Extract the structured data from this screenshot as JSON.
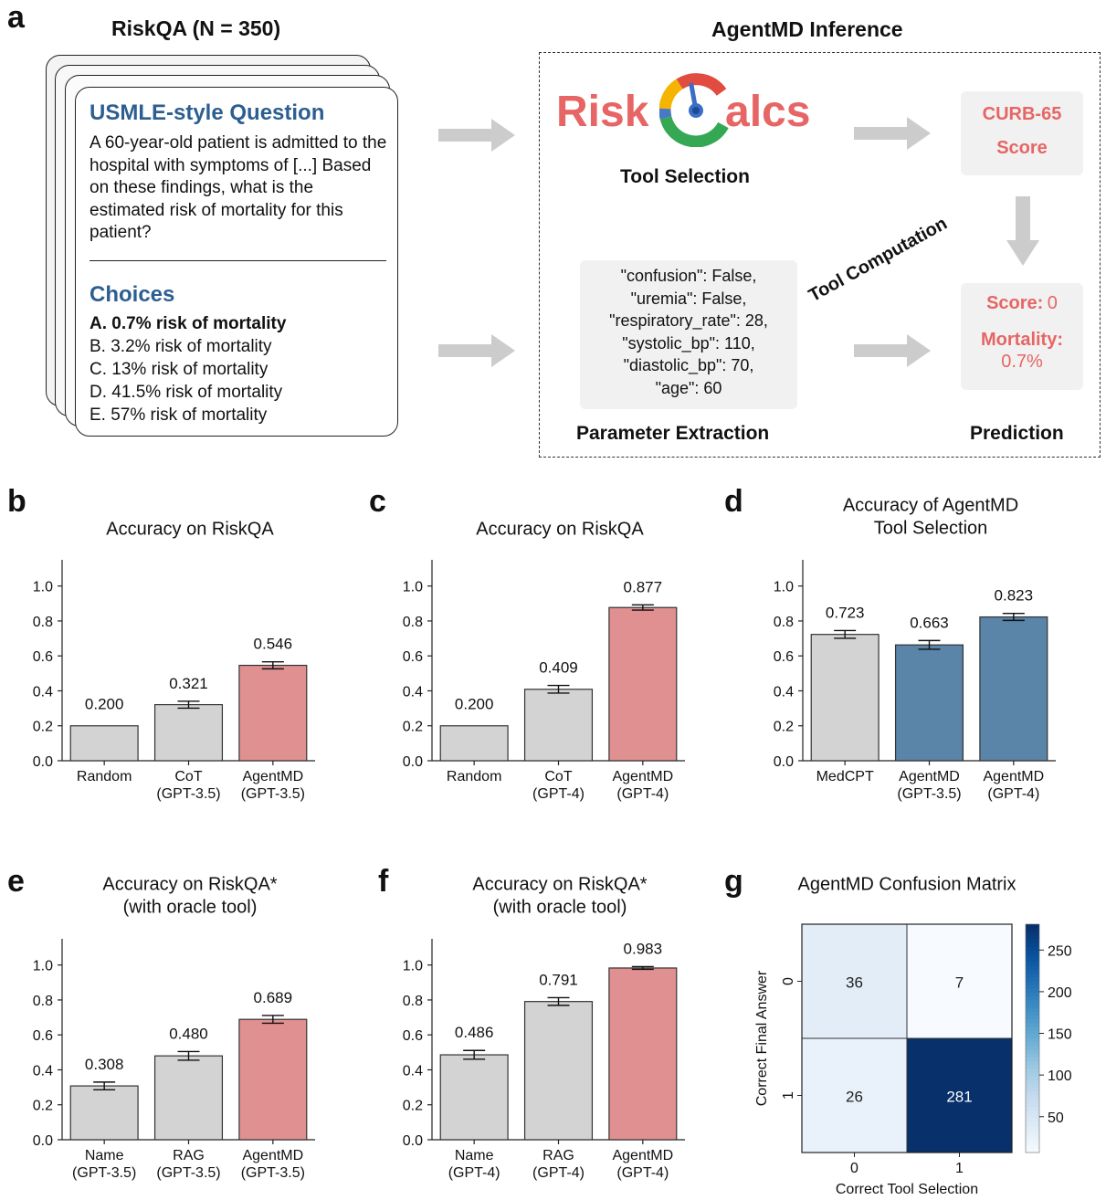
{
  "panels": {
    "a": "a",
    "b": "b",
    "c": "c",
    "d": "d",
    "e": "e",
    "f": "f",
    "g": "g"
  },
  "panel_a": {
    "title_left": "RiskQA (N = 350)",
    "title_right": "AgentMD Inference",
    "question_title": "USMLE-style Question",
    "question_text": "A 60-year-old patient is admitted to the hospital with symptoms of [...] Based on these findings, what is the estimated risk of mortality for this patient?",
    "choices_title": "Choices",
    "choices": [
      "A. 0.7% risk of mortality",
      "B. 3.2% risk of mortality",
      "C. 13% risk of mortality",
      "D. 41.5% risk of mortality",
      "E. 57% risk of mortality"
    ],
    "logo_left": "Risk",
    "logo_right": "alcs",
    "tool_selection_label": "Tool Selection",
    "curb_line1": "CURB-65",
    "curb_line2": "Score",
    "tool_computation_label": "Tool Computation",
    "params": [
      "\"confusion\": False,",
      "\"uremia\": False,",
      "\"respiratory_rate\": 28,",
      "\"systolic_bp\": 110,",
      "\"diastolic_bp\": 70,",
      "\"age\": 60"
    ],
    "parameter_extraction_label": "Parameter Extraction",
    "score_label": "Score:",
    "score_value": "0",
    "mortality_label": "Mortality:",
    "mortality_value": "0.7%",
    "prediction_label": "Prediction",
    "colors": {
      "accent_red": "#e76565",
      "question_blue": "#2c5e91"
    }
  },
  "chart_data": [
    {
      "panel": "b",
      "type": "bar",
      "title": "Accuracy on RiskQA",
      "categories": [
        [
          "Random"
        ],
        [
          "CoT",
          "(GPT-3.5)"
        ],
        [
          "AgentMD",
          "(GPT-3.5)"
        ]
      ],
      "values": [
        0.2,
        0.321,
        0.546
      ],
      "value_labels": [
        "0.200",
        "0.321",
        "0.546"
      ],
      "errors": [
        0,
        0.02,
        0.02
      ],
      "colors": [
        "#d3d3d3",
        "#d3d3d3",
        "#e09090"
      ],
      "ylim": [
        0,
        1.15
      ],
      "yticks": [
        "0.0",
        "0.2",
        "0.4",
        "0.6",
        "0.8",
        "1.0"
      ]
    },
    {
      "panel": "c",
      "type": "bar",
      "title": "Accuracy on RiskQA",
      "categories": [
        [
          "Random"
        ],
        [
          "CoT",
          "(GPT-4)"
        ],
        [
          "AgentMD",
          "(GPT-4)"
        ]
      ],
      "values": [
        0.2,
        0.409,
        0.877
      ],
      "value_labels": [
        "0.200",
        "0.409",
        "0.877"
      ],
      "errors": [
        0,
        0.022,
        0.015
      ],
      "colors": [
        "#d3d3d3",
        "#d3d3d3",
        "#e09090"
      ],
      "ylim": [
        0,
        1.15
      ],
      "yticks": [
        "0.0",
        "0.2",
        "0.4",
        "0.6",
        "0.8",
        "1.0"
      ]
    },
    {
      "panel": "d",
      "type": "bar",
      "title": "Accuracy of AgentMD\nTool Selection",
      "categories": [
        [
          "MedCPT"
        ],
        [
          "AgentMD",
          "(GPT-3.5)"
        ],
        [
          "AgentMD",
          "(GPT-4)"
        ]
      ],
      "values": [
        0.723,
        0.663,
        0.823
      ],
      "value_labels": [
        "0.723",
        "0.663",
        "0.823"
      ],
      "errors": [
        0.022,
        0.025,
        0.02
      ],
      "colors": [
        "#d3d3d3",
        "#5a84a8",
        "#5a84a8"
      ],
      "ylim": [
        0,
        1.15
      ],
      "yticks": [
        "0.0",
        "0.2",
        "0.4",
        "0.6",
        "0.8",
        "1.0"
      ]
    },
    {
      "panel": "e",
      "type": "bar",
      "title": "Accuracy on RiskQA*\n(with oracle tool)",
      "categories": [
        [
          "Name",
          "(GPT-3.5)"
        ],
        [
          "RAG",
          "(GPT-3.5)"
        ],
        [
          "AgentMD",
          "(GPT-3.5)"
        ]
      ],
      "values": [
        0.308,
        0.48,
        0.689
      ],
      "value_labels": [
        "0.308",
        "0.480",
        "0.689"
      ],
      "errors": [
        0.022,
        0.025,
        0.022
      ],
      "colors": [
        "#d3d3d3",
        "#d3d3d3",
        "#e09090"
      ],
      "ylim": [
        0,
        1.15
      ],
      "yticks": [
        "0.0",
        "0.2",
        "0.4",
        "0.6",
        "0.8",
        "1.0"
      ]
    },
    {
      "panel": "f",
      "type": "bar",
      "title": "Accuracy on RiskQA*\n(with oracle tool)",
      "categories": [
        [
          "Name",
          "(GPT-4)"
        ],
        [
          "RAG",
          "(GPT-4)"
        ],
        [
          "AgentMD",
          "(GPT-4)"
        ]
      ],
      "values": [
        0.486,
        0.791,
        0.983
      ],
      "value_labels": [
        "0.486",
        "0.791",
        "0.983"
      ],
      "errors": [
        0.025,
        0.022,
        0.008
      ],
      "colors": [
        "#d3d3d3",
        "#d3d3d3",
        "#e09090"
      ],
      "ylim": [
        0,
        1.15
      ],
      "yticks": [
        "0.0",
        "0.2",
        "0.4",
        "0.6",
        "0.8",
        "1.0"
      ]
    },
    {
      "panel": "g",
      "type": "heatmap",
      "title": "AgentMD Confusion Matrix",
      "xlabel": "Correct Tool Selection",
      "ylabel": "Correct Final Answer",
      "x_ticks": [
        "0",
        "1"
      ],
      "y_ticks": [
        "0",
        "1"
      ],
      "matrix": [
        [
          36,
          7
        ],
        [
          26,
          281
        ]
      ],
      "colorbar_ticks": [
        "50",
        "100",
        "150",
        "200",
        "250"
      ],
      "colorbar_range": [
        7,
        281
      ]
    }
  ]
}
